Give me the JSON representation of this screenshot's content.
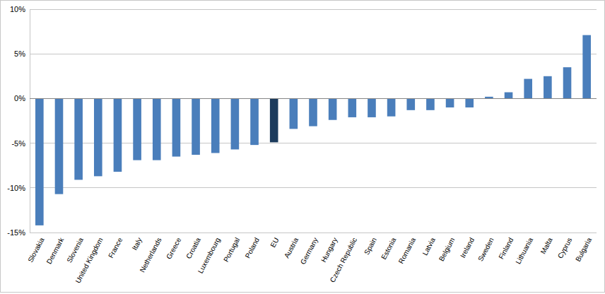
{
  "chart_data": {
    "type": "bar",
    "categories": [
      "Slovakia",
      "Denmark",
      "Slovenia",
      "United Kingdom",
      "France",
      "Italy",
      "Netherlands",
      "Greece",
      "Croatia",
      "Luxembourg",
      "Portugal",
      "Poland",
      "EU",
      "Austria",
      "Germany",
      "Hungary",
      "Czech Republic",
      "Spain",
      "Estonia",
      "Romania",
      "Latvia",
      "Belgium",
      "Ireland",
      "Sweden",
      "Finland",
      "Lithuania",
      "Malta",
      "Cyprus",
      "Bulgaria"
    ],
    "values": [
      -14.2,
      -10.7,
      -9.1,
      -8.7,
      -8.2,
      -6.9,
      -6.9,
      -6.5,
      -6.3,
      -6.1,
      -5.7,
      -5.2,
      -4.9,
      -3.4,
      -3.1,
      -2.4,
      -2.1,
      -2.1,
      -2.0,
      -1.3,
      -1.3,
      -1.0,
      -1.0,
      0.2,
      0.7,
      2.2,
      2.5,
      3.5,
      7.1
    ],
    "colors": [
      "#4a7ebb",
      "#4a7ebb",
      "#4a7ebb",
      "#4a7ebb",
      "#4a7ebb",
      "#4a7ebb",
      "#4a7ebb",
      "#4a7ebb",
      "#4a7ebb",
      "#4a7ebb",
      "#4a7ebb",
      "#4a7ebb",
      "#1b3a5c",
      "#4a7ebb",
      "#4a7ebb",
      "#4a7ebb",
      "#4a7ebb",
      "#4a7ebb",
      "#4a7ebb",
      "#4a7ebb",
      "#4a7ebb",
      "#4a7ebb",
      "#4a7ebb",
      "#4a7ebb",
      "#4a7ebb",
      "#4a7ebb",
      "#4a7ebb",
      "#4a7ebb",
      "#4a7ebb"
    ],
    "ylim": [
      -15,
      10
    ],
    "yticks": [
      {
        "value": -15,
        "label": "-15%"
      },
      {
        "value": -10,
        "label": "-10%"
      },
      {
        "value": -5,
        "label": "-5%"
      },
      {
        "value": 0,
        "label": "0%"
      },
      {
        "value": 5,
        "label": "5%"
      },
      {
        "value": 10,
        "label": "10%"
      }
    ],
    "grid": true
  }
}
